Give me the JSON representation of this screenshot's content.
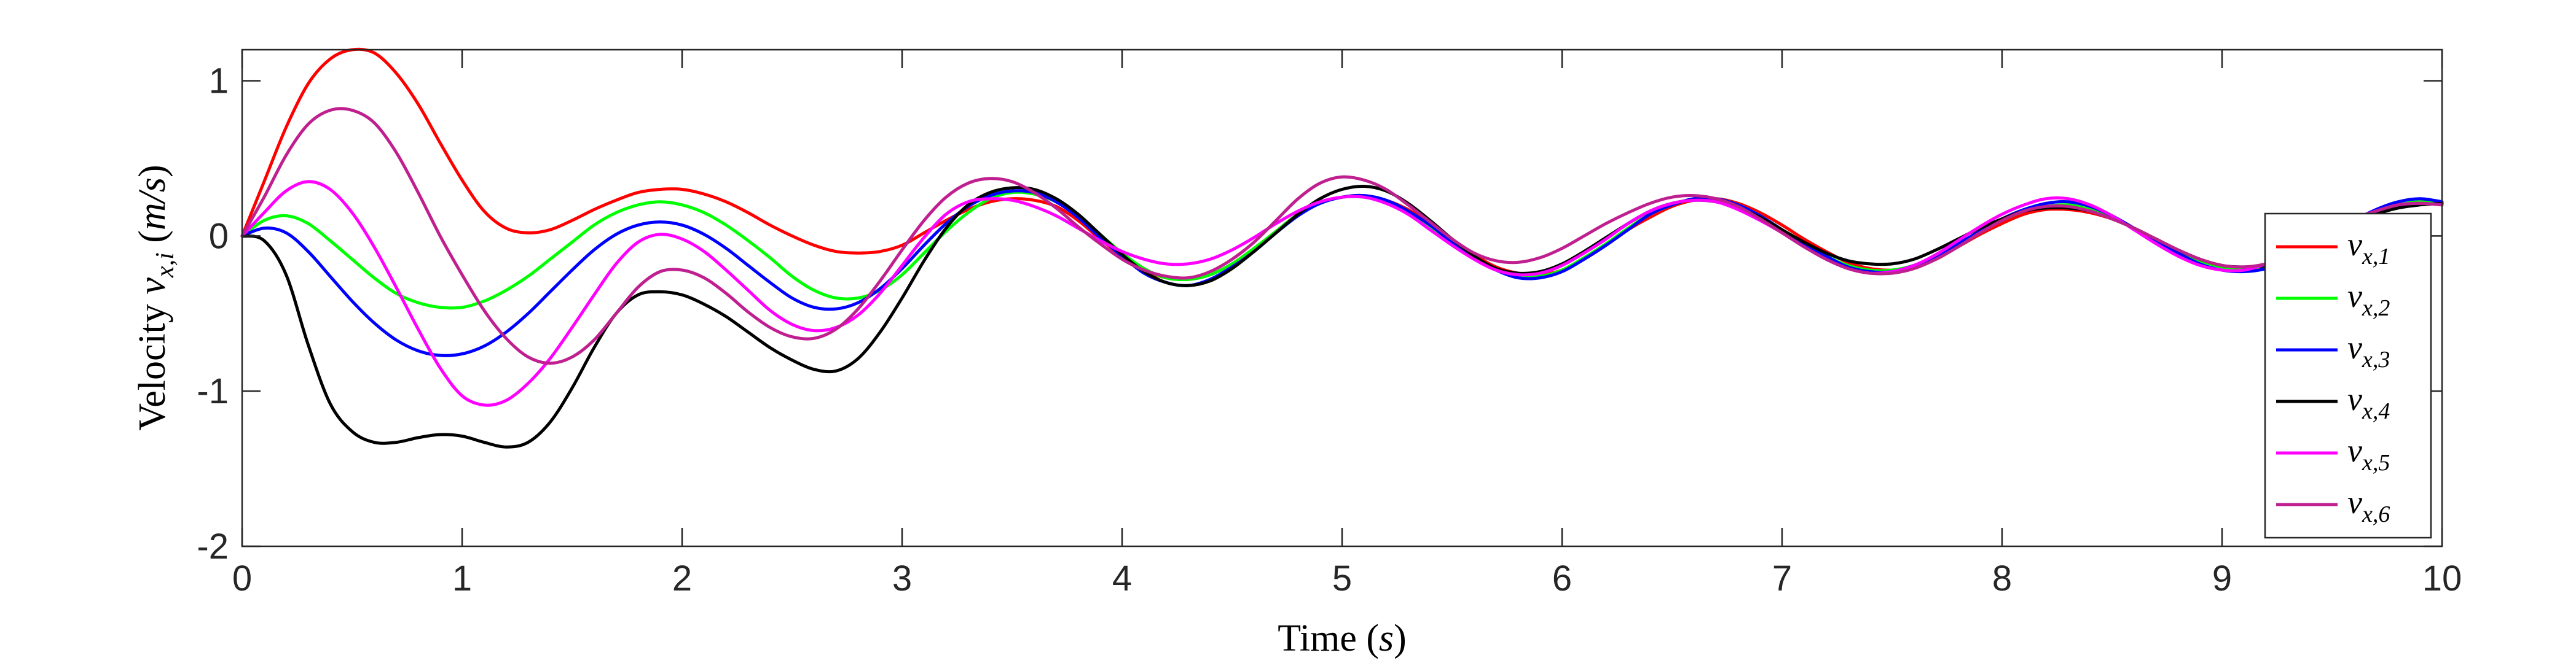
{
  "chart_data": {
    "type": "line",
    "xlabel": "Time (s)",
    "xlabel_parts": {
      "text": "Time ",
      "open": "(",
      "var": "s",
      "close": ")"
    },
    "ylabel": "Velocity v_{x,i} (m/s)",
    "ylabel_parts": {
      "text": "Velocity ",
      "var": "v",
      "sub": "x,i",
      "unit_open": " (",
      "unit": "m/s",
      "unit_close": ")"
    },
    "xlim": [
      0,
      10
    ],
    "ylim": [
      -2,
      1.2
    ],
    "x_ticks": [
      0,
      1,
      2,
      3,
      4,
      5,
      6,
      7,
      8,
      9,
      10
    ],
    "x_tick_labels": [
      "0",
      "1",
      "2",
      "3",
      "4",
      "5",
      "6",
      "7",
      "8",
      "9",
      "10"
    ],
    "y_ticks": [
      -2,
      -1,
      0,
      1
    ],
    "y_tick_labels": [
      "-2",
      "-1",
      "0",
      "1"
    ],
    "grid": false,
    "legend_position": "right",
    "x": [
      0,
      0.1,
      0.2,
      0.3,
      0.4,
      0.5,
      0.6,
      0.7,
      0.8,
      0.9,
      1.0,
      1.1,
      1.2,
      1.3,
      1.4,
      1.5,
      1.6,
      1.7,
      1.8,
      1.9,
      2.0,
      2.1,
      2.2,
      2.3,
      2.4,
      2.5,
      2.6,
      2.7,
      2.8,
      2.9,
      3.0,
      3.1,
      3.2,
      3.3,
      3.4,
      3.5,
      3.6,
      3.7,
      3.8,
      3.9,
      4.0,
      4.1,
      4.2,
      4.3,
      4.4,
      4.5,
      4.6,
      4.7,
      4.8,
      4.9,
      5.0,
      5.1,
      5.2,
      5.3,
      5.4,
      5.5,
      5.6,
      5.7,
      5.8,
      5.9,
      6.0,
      6.1,
      6.2,
      6.3,
      6.4,
      6.5,
      6.6,
      6.7,
      6.8,
      6.9,
      7.0,
      7.1,
      7.2,
      7.3,
      7.4,
      7.5,
      7.6,
      7.7,
      7.8,
      7.9,
      8.0,
      8.1,
      8.2,
      8.3,
      8.4,
      8.5,
      8.6,
      8.7,
      8.8,
      8.9,
      9.0,
      9.1,
      9.2,
      9.3,
      9.4,
      9.5,
      9.6,
      9.7,
      9.8,
      9.9,
      10.0
    ],
    "series": [
      {
        "name": "v_{x,1}",
        "sub": "x,1",
        "color": "#ff0000",
        "values": [
          0,
          0.35,
          0.7,
          0.98,
          1.14,
          1.2,
          1.18,
          1.05,
          0.85,
          0.6,
          0.36,
          0.16,
          0.05,
          0.02,
          0.04,
          0.1,
          0.17,
          0.23,
          0.28,
          0.3,
          0.3,
          0.27,
          0.22,
          0.15,
          0.07,
          0,
          -0.06,
          -0.1,
          -0.11,
          -0.1,
          -0.06,
          0.02,
          0.1,
          0.17,
          0.22,
          0.24,
          0.23,
          0.19,
          0.1,
          -0.02,
          -0.13,
          -0.22,
          -0.27,
          -0.28,
          -0.25,
          -0.18,
          -0.08,
          0.03,
          0.14,
          0.21,
          0.25,
          0.26,
          0.23,
          0.17,
          0.08,
          -0.02,
          -0.12,
          -0.2,
          -0.24,
          -0.25,
          -0.22,
          -0.15,
          -0.06,
          0.04,
          0.12,
          0.19,
          0.23,
          0.24,
          0.21,
          0.15,
          0.07,
          -0.02,
          -0.1,
          -0.17,
          -0.21,
          -0.22,
          -0.2,
          -0.15,
          -0.07,
          0.01,
          0.08,
          0.14,
          0.17,
          0.17,
          0.15,
          0.11,
          0.05,
          -0.02,
          -0.09,
          -0.15,
          -0.19,
          -0.21,
          -0.2,
          -0.16,
          -0.09,
          -0.01,
          0.07,
          0.14,
          0.19,
          0.22,
          0.21
        ]
      },
      {
        "name": "v_{x,2}",
        "sub": "x,2",
        "color": "#00ff00",
        "values": [
          0,
          0.1,
          0.13,
          0.08,
          -0.03,
          -0.15,
          -0.27,
          -0.37,
          -0.43,
          -0.46,
          -0.46,
          -0.42,
          -0.35,
          -0.26,
          -0.15,
          -0.04,
          0.07,
          0.15,
          0.2,
          0.22,
          0.2,
          0.15,
          0.07,
          -0.03,
          -0.14,
          -0.26,
          -0.35,
          -0.4,
          -0.4,
          -0.35,
          -0.25,
          -0.11,
          0.03,
          0.15,
          0.24,
          0.28,
          0.27,
          0.22,
          0.13,
          0.01,
          -0.11,
          -0.21,
          -0.27,
          -0.28,
          -0.25,
          -0.18,
          -0.08,
          0.03,
          0.14,
          0.21,
          0.25,
          0.25,
          0.22,
          0.15,
          0.06,
          -0.04,
          -0.14,
          -0.22,
          -0.26,
          -0.26,
          -0.22,
          -0.14,
          -0.05,
          0.05,
          0.14,
          0.2,
          0.24,
          0.24,
          0.2,
          0.13,
          0.04,
          -0.05,
          -0.13,
          -0.19,
          -0.22,
          -0.22,
          -0.19,
          -0.13,
          -0.05,
          0.03,
          0.1,
          0.16,
          0.19,
          0.2,
          0.17,
          0.12,
          0.05,
          -0.03,
          -0.1,
          -0.16,
          -0.2,
          -0.21,
          -0.19,
          -0.14,
          -0.07,
          0.01,
          0.09,
          0.16,
          0.2,
          0.22,
          0.2
        ]
      },
      {
        "name": "v_{x,3}",
        "sub": "x,3",
        "color": "#0000ff",
        "values": [
          0,
          0.05,
          0.02,
          -0.1,
          -0.26,
          -0.42,
          -0.56,
          -0.67,
          -0.74,
          -0.77,
          -0.76,
          -0.71,
          -0.62,
          -0.5,
          -0.36,
          -0.22,
          -0.09,
          0.01,
          0.07,
          0.09,
          0.07,
          0.01,
          -0.08,
          -0.19,
          -0.3,
          -0.4,
          -0.46,
          -0.47,
          -0.43,
          -0.34,
          -0.21,
          -0.06,
          0.08,
          0.19,
          0.26,
          0.29,
          0.28,
          0.22,
          0.12,
          -0.01,
          -0.13,
          -0.24,
          -0.3,
          -0.32,
          -0.28,
          -0.2,
          -0.1,
          0.02,
          0.13,
          0.21,
          0.25,
          0.26,
          0.23,
          0.16,
          0.07,
          -0.04,
          -0.14,
          -0.22,
          -0.27,
          -0.27,
          -0.23,
          -0.15,
          -0.06,
          0.04,
          0.14,
          0.2,
          0.24,
          0.24,
          0.2,
          0.13,
          0.04,
          -0.05,
          -0.13,
          -0.2,
          -0.23,
          -0.23,
          -0.19,
          -0.13,
          -0.05,
          0.03,
          0.11,
          0.17,
          0.21,
          0.22,
          0.19,
          0.13,
          0.05,
          -0.03,
          -0.11,
          -0.18,
          -0.22,
          -0.23,
          -0.21,
          -0.15,
          -0.07,
          0.02,
          0.1,
          0.17,
          0.22,
          0.24,
          0.22
        ]
      },
      {
        "name": "v_{x,4}",
        "sub": "x,4",
        "color": "#000000",
        "values": [
          0,
          -0.03,
          -0.25,
          -0.7,
          -1.08,
          -1.26,
          -1.33,
          -1.33,
          -1.3,
          -1.28,
          -1.29,
          -1.33,
          -1.36,
          -1.33,
          -1.2,
          -0.98,
          -0.72,
          -0.5,
          -0.38,
          -0.36,
          -0.38,
          -0.44,
          -0.52,
          -0.62,
          -0.72,
          -0.8,
          -0.86,
          -0.87,
          -0.79,
          -0.62,
          -0.4,
          -0.16,
          0.05,
          0.2,
          0.28,
          0.31,
          0.3,
          0.24,
          0.14,
          0.01,
          -0.12,
          -0.23,
          -0.3,
          -0.32,
          -0.29,
          -0.21,
          -0.1,
          0.02,
          0.14,
          0.24,
          0.3,
          0.32,
          0.29,
          0.21,
          0.1,
          -0.02,
          -0.13,
          -0.21,
          -0.24,
          -0.23,
          -0.18,
          -0.1,
          -0.01,
          0.08,
          0.16,
          0.21,
          0.23,
          0.22,
          0.18,
          0.12,
          0.04,
          -0.04,
          -0.11,
          -0.16,
          -0.18,
          -0.18,
          -0.15,
          -0.09,
          -0.02,
          0.05,
          0.11,
          0.16,
          0.18,
          0.18,
          0.16,
          0.11,
          0.05,
          -0.02,
          -0.09,
          -0.15,
          -0.19,
          -0.2,
          -0.19,
          -0.14,
          -0.07,
          0.01,
          0.08,
          0.14,
          0.18,
          0.2,
          0.21
        ]
      },
      {
        "name": "v_{x,5}",
        "sub": "x,5",
        "color": "#ff00ff",
        "values": [
          0,
          0.15,
          0.29,
          0.35,
          0.3,
          0.15,
          -0.07,
          -0.33,
          -0.6,
          -0.85,
          -1.03,
          -1.09,
          -1.06,
          -0.95,
          -0.79,
          -0.59,
          -0.38,
          -0.18,
          -0.04,
          0.01,
          -0.02,
          -0.1,
          -0.22,
          -0.35,
          -0.48,
          -0.57,
          -0.61,
          -0.59,
          -0.51,
          -0.37,
          -0.19,
          -0.01,
          0.14,
          0.22,
          0.24,
          0.23,
          0.19,
          0.13,
          0.05,
          -0.03,
          -0.1,
          -0.15,
          -0.18,
          -0.18,
          -0.15,
          -0.09,
          -0.01,
          0.08,
          0.16,
          0.22,
          0.25,
          0.25,
          0.21,
          0.14,
          0.04,
          -0.06,
          -0.15,
          -0.22,
          -0.25,
          -0.24,
          -0.19,
          -0.11,
          -0.02,
          0.08,
          0.16,
          0.21,
          0.23,
          0.22,
          0.17,
          0.1,
          0.02,
          -0.07,
          -0.15,
          -0.21,
          -0.24,
          -0.23,
          -0.19,
          -0.12,
          -0.03,
          0.06,
          0.14,
          0.2,
          0.24,
          0.24,
          0.2,
          0.13,
          0.04,
          -0.05,
          -0.13,
          -0.19,
          -0.22,
          -0.22,
          -0.18,
          -0.12,
          -0.04,
          0.04,
          0.11,
          0.16,
          0.2,
          0.21,
          0.2
        ]
      },
      {
        "name": "v_{x,6}",
        "sub": "x,6",
        "color": "#bf1f8f",
        "values": [
          0,
          0.25,
          0.52,
          0.72,
          0.81,
          0.81,
          0.73,
          0.54,
          0.28,
          0,
          -0.25,
          -0.48,
          -0.66,
          -0.78,
          -0.82,
          -0.78,
          -0.67,
          -0.5,
          -0.33,
          -0.23,
          -0.22,
          -0.27,
          -0.37,
          -0.49,
          -0.59,
          -0.65,
          -0.66,
          -0.6,
          -0.47,
          -0.29,
          -0.09,
          0.1,
          0.25,
          0.34,
          0.37,
          0.35,
          0.28,
          0.18,
          0.06,
          -0.05,
          -0.15,
          -0.22,
          -0.26,
          -0.27,
          -0.23,
          -0.15,
          -0.04,
          0.1,
          0.24,
          0.34,
          0.38,
          0.36,
          0.3,
          0.2,
          0.09,
          -0.02,
          -0.11,
          -0.16,
          -0.17,
          -0.14,
          -0.08,
          0,
          0.08,
          0.15,
          0.21,
          0.25,
          0.26,
          0.24,
          0.19,
          0.11,
          0.02,
          -0.07,
          -0.15,
          -0.21,
          -0.24,
          -0.24,
          -0.21,
          -0.15,
          -0.07,
          0.02,
          0.1,
          0.16,
          0.19,
          0.19,
          0.16,
          0.11,
          0.05,
          -0.02,
          -0.09,
          -0.15,
          -0.19,
          -0.2,
          -0.18,
          -0.13,
          -0.06,
          0.02,
          0.1,
          0.16,
          0.2,
          0.21,
          0.2
        ]
      }
    ]
  }
}
